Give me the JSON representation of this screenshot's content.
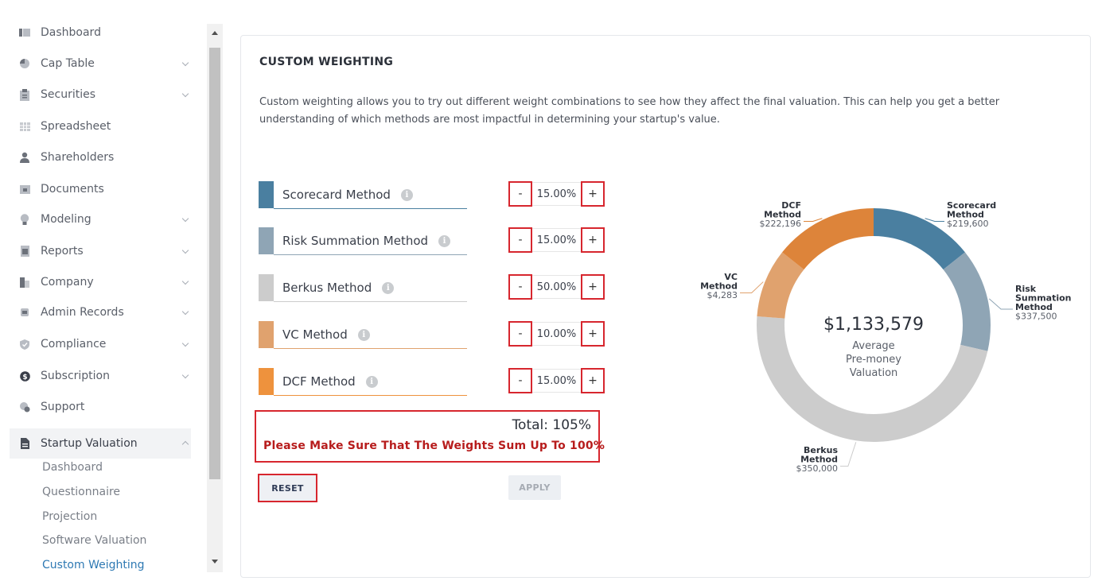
{
  "sidebar": {
    "items": [
      {
        "label": "Dashboard",
        "icon": "dashboard-icon",
        "expandable": false
      },
      {
        "label": "Cap Table",
        "icon": "pie-chart-icon",
        "expandable": true
      },
      {
        "label": "Securities",
        "icon": "clipboard-icon",
        "expandable": true
      },
      {
        "label": "Spreadsheet",
        "icon": "spreadsheet-icon",
        "expandable": false
      },
      {
        "label": "Shareholders",
        "icon": "person-icon",
        "expandable": false
      },
      {
        "label": "Documents",
        "icon": "folder-icon",
        "expandable": false
      },
      {
        "label": "Modeling",
        "icon": "lightbulb-icon",
        "expandable": true
      },
      {
        "label": "Reports",
        "icon": "report-icon",
        "expandable": true
      },
      {
        "label": "Company",
        "icon": "building-icon",
        "expandable": true
      },
      {
        "label": "Admin Records",
        "icon": "record-icon",
        "expandable": true
      },
      {
        "label": "Compliance",
        "icon": "shield-icon",
        "expandable": true
      },
      {
        "label": "Subscription",
        "icon": "dollar-icon",
        "expandable": true
      },
      {
        "label": "Support",
        "icon": "support-icon",
        "expandable": false
      },
      {
        "label": "Startup Valuation",
        "icon": "document-icon",
        "expandable": true
      }
    ],
    "sub_items": [
      "Dashboard",
      "Questionnaire",
      "Projection",
      "Software Valuation",
      "Custom Weighting"
    ]
  },
  "card": {
    "title": "CUSTOM WEIGHTING",
    "description": "Custom weighting allows you to try out different weight combinations to see how they affect the final valuation. This can help you get a better understanding of which methods are most impactful in determining your startup's value."
  },
  "methods": [
    {
      "label": "Scorecard Method",
      "weight": "15.00%",
      "color": "#4a7fa0"
    },
    {
      "label": "Risk Summation Method",
      "weight": "15.00%",
      "color": "#8fa5b5"
    },
    {
      "label": "Berkus Method",
      "weight": "50.00%",
      "color": "#cccccc"
    },
    {
      "label": "VC Method",
      "weight": "10.00%",
      "color": "#e0a26e"
    },
    {
      "label": "DCF Method",
      "weight": "15.00%",
      "color": "#ee923d"
    }
  ],
  "stepper": {
    "minus": "-",
    "plus": "+"
  },
  "total": {
    "text": "Total: 105%",
    "warning": "Please Make Sure That The Weights Sum Up To 100%"
  },
  "buttons": {
    "reset": "RESET",
    "apply": "APPLY"
  },
  "chart_data": {
    "type": "pie",
    "center_value": "$1,133,579",
    "center_label": [
      "Average",
      "Pre-money",
      "Valuation"
    ],
    "slices": [
      {
        "name_lines": [
          "Scorecard",
          "Method"
        ],
        "value_label": "$219,600",
        "share": 0.15,
        "color": "#4a7fa0"
      },
      {
        "name_lines": [
          "Risk",
          "Summation",
          "Method"
        ],
        "value_label": "$337,500",
        "share": 0.15,
        "color": "#8fa5b5"
      },
      {
        "name_lines": [
          "Berkus",
          "Method"
        ],
        "value_label": "$350,000",
        "share": 0.5,
        "color": "#cccccc"
      },
      {
        "name_lines": [
          "VC",
          "Method"
        ],
        "value_label": "$4,283",
        "share": 0.1,
        "color": "#e0a26e"
      },
      {
        "name_lines": [
          "DCF",
          "Method"
        ],
        "value_label": "$222,196",
        "share": 0.15,
        "color": "#dd843a"
      }
    ]
  }
}
